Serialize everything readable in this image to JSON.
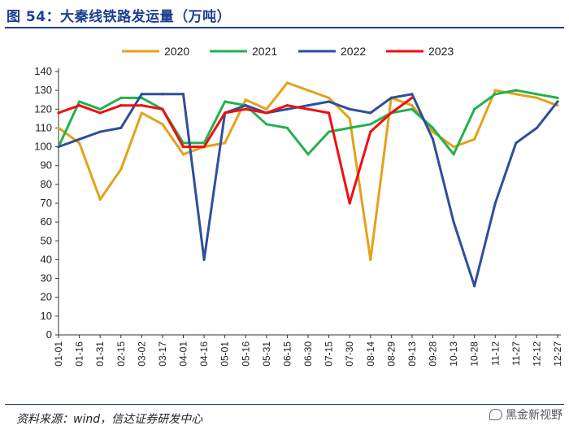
{
  "figure_title": "图 54：大秦线铁路发运量（万吨）",
  "source": "资料来源：wind，信达证券研发中心",
  "watermark": "黑金新视野",
  "chart_data": {
    "type": "line",
    "title": "大秦线铁路发运量（万吨）",
    "xlabel": "",
    "ylabel": "",
    "ylim": [
      0,
      140
    ],
    "yticks": [
      0,
      10,
      20,
      30,
      40,
      50,
      60,
      70,
      80,
      90,
      100,
      110,
      120,
      130,
      140
    ],
    "x": [
      "01-01",
      "01-16",
      "01-31",
      "02-15",
      "03-02",
      "03-17",
      "04-01",
      "04-16",
      "05-01",
      "05-16",
      "05-31",
      "06-15",
      "06-30",
      "07-15",
      "07-30",
      "08-14",
      "08-29",
      "09-13",
      "09-28",
      "10-13",
      "10-28",
      "11-12",
      "11-27",
      "12-12",
      "12-27"
    ],
    "grid": false,
    "legend_position": "top",
    "series": [
      {
        "name": "2020",
        "color": "#e3a21a",
        "values": [
          110,
          102,
          72,
          88,
          118,
          112,
          96,
          100,
          102,
          125,
          120,
          134,
          130,
          126,
          115,
          40,
          126,
          122,
          108,
          100,
          104,
          130,
          128,
          126,
          122
        ]
      },
      {
        "name": "2021",
        "color": "#22b24c",
        "values": [
          100,
          124,
          120,
          126,
          126,
          120,
          102,
          102,
          124,
          122,
          112,
          110,
          96,
          108,
          110,
          112,
          118,
          120,
          110,
          96,
          120,
          128,
          130,
          128,
          126
        ]
      },
      {
        "name": "2022",
        "color": "#2e4f9c",
        "values": [
          100,
          104,
          108,
          110,
          128,
          128,
          128,
          40,
          118,
          122,
          118,
          120,
          122,
          124,
          120,
          118,
          126,
          128,
          104,
          60,
          26,
          70,
          102,
          110,
          124
        ]
      },
      {
        "name": "2023",
        "color": "#f20d10",
        "values": [
          118,
          122,
          118,
          122,
          122,
          120,
          100,
          100,
          118,
          120,
          118,
          122,
          120,
          118,
          70,
          108,
          118,
          126,
          null,
          null,
          null,
          null,
          null,
          null,
          null
        ]
      }
    ]
  }
}
